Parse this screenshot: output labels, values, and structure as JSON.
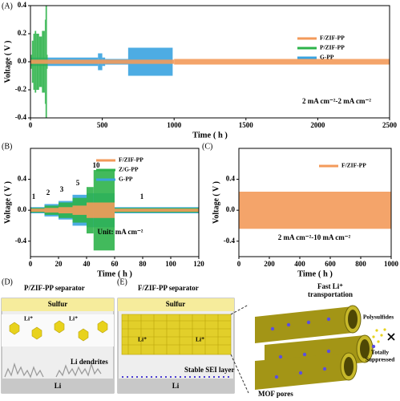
{
  "chart_data": [
    {
      "type": "band",
      "label": "(A)",
      "ylabel": "Voltage ( V )",
      "xlabel": "Time ( h )",
      "xlim": [
        0,
        2500
      ],
      "ylim": [
        -0.4,
        0.4
      ],
      "xticks": [
        0,
        500,
        1000,
        1500,
        2000,
        2500
      ],
      "yticks": [
        -0.4,
        -0.2,
        {
          "value": 0,
          "label": "0.0"
        },
        0.2,
        0.4
      ],
      "legend": "upper right",
      "annotations": [
        "2 mA cm⁻²-2  mA cm⁻²"
      ],
      "series": [
        {
          "name": "F/ZIF-PP",
          "color": "#f39a5a",
          "bins": [
            0,
            1000,
            2500
          ],
          "values": [
            0.015,
            0.02
          ]
        },
        {
          "name": "P/ZIF-PP",
          "color": "#2db34a",
          "bins": [
            0,
            10,
            20,
            30,
            40,
            60,
            80,
            100,
            105,
            115,
            120
          ],
          "values": [
            0.05,
            0.15,
            0.2,
            0.22,
            0.2,
            0.18,
            0.22,
            0.3,
            0.4,
            0.05
          ]
        },
        {
          "name": "G-PP",
          "color": "#3aa3e0",
          "bins": [
            0,
            470,
            500,
            520,
            680,
            990
          ],
          "values": [
            0.03,
            0.06,
            0.03,
            0.02,
            0.1
          ]
        }
      ]
    },
    {
      "type": "band",
      "label": "(B)",
      "ylabel": "Voltage ( V )",
      "xlabel": "Time ( h )",
      "xlim": [
        0,
        120
      ],
      "ylim": [
        -0.6,
        0.8
      ],
      "xticks": [
        0,
        20,
        40,
        60,
        80,
        100,
        120
      ],
      "yticks": [
        -0.4,
        {
          "value": 0,
          "label": "0.0"
        },
        0.4
      ],
      "legend": "upper right",
      "annotations": [
        "1",
        "2",
        "3",
        "5",
        "10",
        "1",
        "Unit: mA cm⁻²"
      ],
      "series": [
        {
          "name": "F/ZIF-PP",
          "color": "#f39a5a",
          "bins": [
            0,
            10,
            20,
            30,
            40,
            60,
            120
          ],
          "values": [
            0.02,
            0.03,
            0.04,
            0.06,
            0.1,
            0.02
          ]
        },
        {
          "name": "Z/G-PP",
          "color": "#2db34a",
          "bins": [
            0,
            10,
            20,
            30,
            40,
            45,
            60,
            120
          ],
          "values": [
            0.03,
            0.06,
            0.1,
            0.16,
            0.3,
            0.52,
            0.03
          ]
        },
        {
          "name": "G-PP",
          "color": "#3aa3e0",
          "bins": [
            0,
            10,
            20,
            30,
            40,
            60,
            120
          ],
          "values": [
            0.04,
            0.08,
            0.12,
            0.2,
            0.22,
            0.04
          ]
        }
      ]
    },
    {
      "type": "band",
      "label": "(C)",
      "ylabel": "Voltage ( V )",
      "xlabel": "Time ( h )",
      "xlim": [
        0,
        1000
      ],
      "ylim": [
        -0.6,
        0.8
      ],
      "xticks": [
        0,
        200,
        400,
        600,
        800,
        1000
      ],
      "yticks": [
        -0.4,
        {
          "value": 0,
          "label": "0.0"
        },
        0.4
      ],
      "legend": "upper right",
      "annotations": [
        "2 mA cm⁻²-10 mA cm⁻²"
      ],
      "series": [
        {
          "name": "F/ZIF-PP",
          "color": "#f39a5a",
          "bins": [
            0,
            1000
          ],
          "values": [
            0.24
          ]
        }
      ]
    }
  ],
  "diagram": {
    "d": {
      "label": "(D)",
      "title": "P/ZIF-PP separator",
      "sulfur": "Sulfur",
      "ion": "Li⁺",
      "dendrites": "Li dendrites",
      "anode": "Li"
    },
    "e": {
      "label": "(E)",
      "title": "F/ZIF-PP separator",
      "sulfur": "Sulfur",
      "ion": "Li⁺",
      "anode": "Li",
      "sei": "Stable SEI layer",
      "fast": [
        "Fast Li⁺",
        "transportation"
      ],
      "polysulfides": "Polysulfides",
      "suppressed": [
        "Totally",
        "Suppressed"
      ],
      "pores": "MOF pores"
    }
  }
}
